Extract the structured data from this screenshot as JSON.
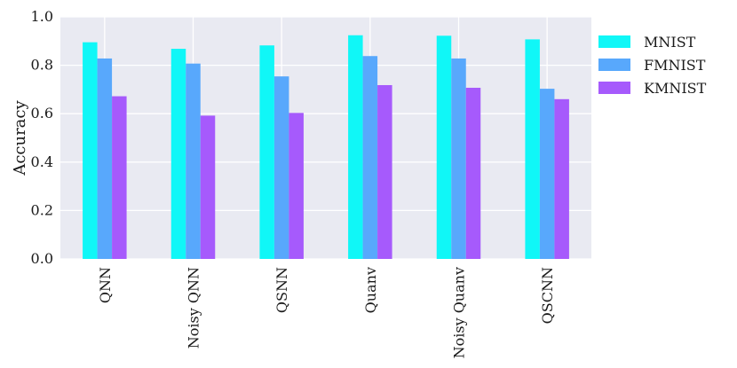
{
  "chart_data": {
    "type": "bar",
    "categories": [
      "QNN",
      "Noisy QNN",
      "QSNN",
      "Quanv",
      "Noisy Quanv",
      "QSCNN"
    ],
    "series": [
      {
        "name": "MNIST",
        "color": "#10f7f7",
        "values": [
          0.895,
          0.868,
          0.882,
          0.924,
          0.922,
          0.907
        ]
      },
      {
        "name": "FMNIST",
        "color": "#58a8fc",
        "values": [
          0.828,
          0.807,
          0.754,
          0.838,
          0.828,
          0.703
        ]
      },
      {
        "name": "KMNIST",
        "color": "#a65afc",
        "values": [
          0.672,
          0.592,
          0.603,
          0.718,
          0.707,
          0.66
        ]
      }
    ],
    "ylabel": "Accuracy",
    "xlabel": "",
    "ylim": [
      0.0,
      1.0
    ],
    "yticks": [
      "0.0",
      "0.2",
      "0.4",
      "0.6",
      "0.8",
      "1.0"
    ],
    "grid": true,
    "legend_position": "outside-right-top",
    "plot_background": "#e9eaf2"
  }
}
